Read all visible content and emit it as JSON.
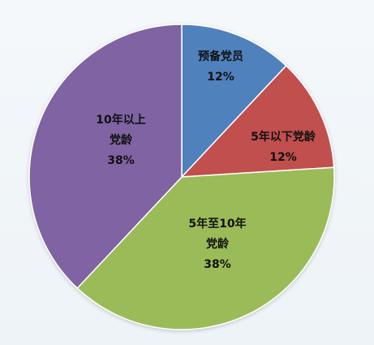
{
  "chart_data": {
    "type": "pie",
    "title": "",
    "slices": [
      {
        "label_lines": [
          "预备党员"
        ],
        "value": 12,
        "value_label": "12%",
        "color": "#4F81BD"
      },
      {
        "label_lines": [
          "5年以下党龄"
        ],
        "value": 12,
        "value_label": "12%",
        "color": "#C0504D"
      },
      {
        "label_lines": [
          "5年至10年",
          "党龄"
        ],
        "value": 38,
        "value_label": "38%",
        "color": "#9BBB59"
      },
      {
        "label_lines": [
          "10年以上",
          "党龄"
        ],
        "value": 38,
        "value_label": "38%",
        "color": "#8064A2"
      }
    ]
  }
}
